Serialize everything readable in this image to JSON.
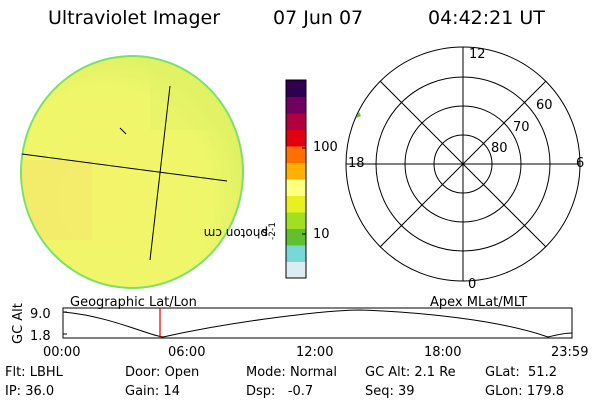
{
  "header": {
    "title": "Ultraviolet Imager",
    "date": "07 Jun 07",
    "time": "04:42:21 UT"
  },
  "image_panel": {
    "disk_color": "#ecf466",
    "rim_color": "#7be06b",
    "grid_color": "#000000"
  },
  "colorbar": {
    "label_main": "photon cm",
    "label_exp1": "-2",
    "label_mid": "s",
    "label_exp2": "-1",
    "tick_labels": [
      "100",
      "10"
    ],
    "colors": [
      "#dcecf0",
      "#78d8d8",
      "#60c030",
      "#a0e020",
      "#e8f020",
      "#ffff80",
      "#ffb000",
      "#ff7000",
      "#e00010",
      "#b00040",
      "#700060",
      "#300050"
    ]
  },
  "polar_plot": {
    "mlt_labels": [
      "12",
      "18",
      "6",
      "0"
    ],
    "lat_labels": [
      "60",
      "70",
      "80"
    ]
  },
  "orbit": {
    "left_title": "Geographic Lat/Lon",
    "right_title": "Apex MLat/MLT",
    "ylabel": "GC Alt",
    "yticks": [
      "9.0",
      "1.8"
    ],
    "xticks": [
      "00:00",
      "06:00",
      "12:00",
      "18:00",
      "23:59"
    ],
    "marker_color": "#e00000"
  },
  "status": {
    "row1": [
      {
        "label": "Flt:",
        "value": "LBHL"
      },
      {
        "label": "Door:",
        "value": "Open"
      },
      {
        "label": "Mode:",
        "value": "Normal"
      },
      {
        "label": "GC Alt:",
        "value": "2.1 Re"
      },
      {
        "label": "GLat:",
        "value": "51.2"
      }
    ],
    "row2": [
      {
        "label": "IP:",
        "value": "36.0"
      },
      {
        "label": "Gain:",
        "value": "14"
      },
      {
        "label": "Dsp:",
        "value": "-0.7"
      },
      {
        "label": "Seq:",
        "value": "39"
      },
      {
        "label": "GLon:",
        "value": "179.8"
      }
    ]
  }
}
